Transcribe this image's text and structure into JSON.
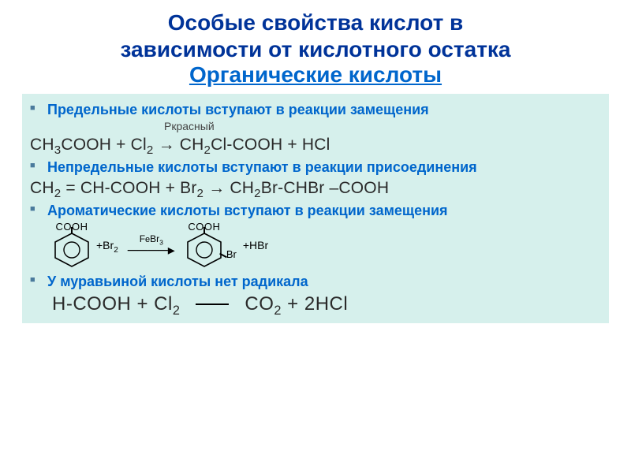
{
  "colors": {
    "title": "#003399",
    "subtitle": "#0066cc",
    "box_bg": "#d6f0ec",
    "bullet_blue": "#0066cc",
    "bullet_marker": "#4a7a9c",
    "text_dark": "#2a2a2a",
    "p_label": "#444444"
  },
  "fonts": {
    "title_size": "28px",
    "subtitle_size": "28px",
    "bullet_size": "18px",
    "eq_size": "21px",
    "final_eq_size": "24px",
    "p_label_size": "14px"
  },
  "title": {
    "line1": "Особые свойства кислот в",
    "line2": "зависимости от кислотного остатка",
    "sub": "Органические кислоты"
  },
  "sections": {
    "b1": "Предельные кислоты вступают в реакции замещения",
    "p_label": "Ркрасный",
    "eq1_lhs": "CH₃COOH + Cl₂",
    "eq1_rhs": "CH₂Cl-COOH + HCl",
    "b2": "Непредельные кислоты вступают в реакции присоединения",
    "eq2_lhs": "CH₂ = CH-COOH + Br₂",
    "eq2_rhs": "CH₂Br-CHBr –COOH",
    "b3": "Ароматические кислоты вступают в реакции замещения",
    "aromatic": {
      "cooh": "COOH",
      "plus": "+",
      "br2": "Br₂",
      "cat_lower": "FеBr₃",
      "hbr": "HBr",
      "br": "Br"
    },
    "b4": "У муравьиной кислоты нет радикала",
    "eq4_lhs": "H-COOH + Cl₂",
    "eq4_rhs": "CO₂ + 2HCl"
  }
}
